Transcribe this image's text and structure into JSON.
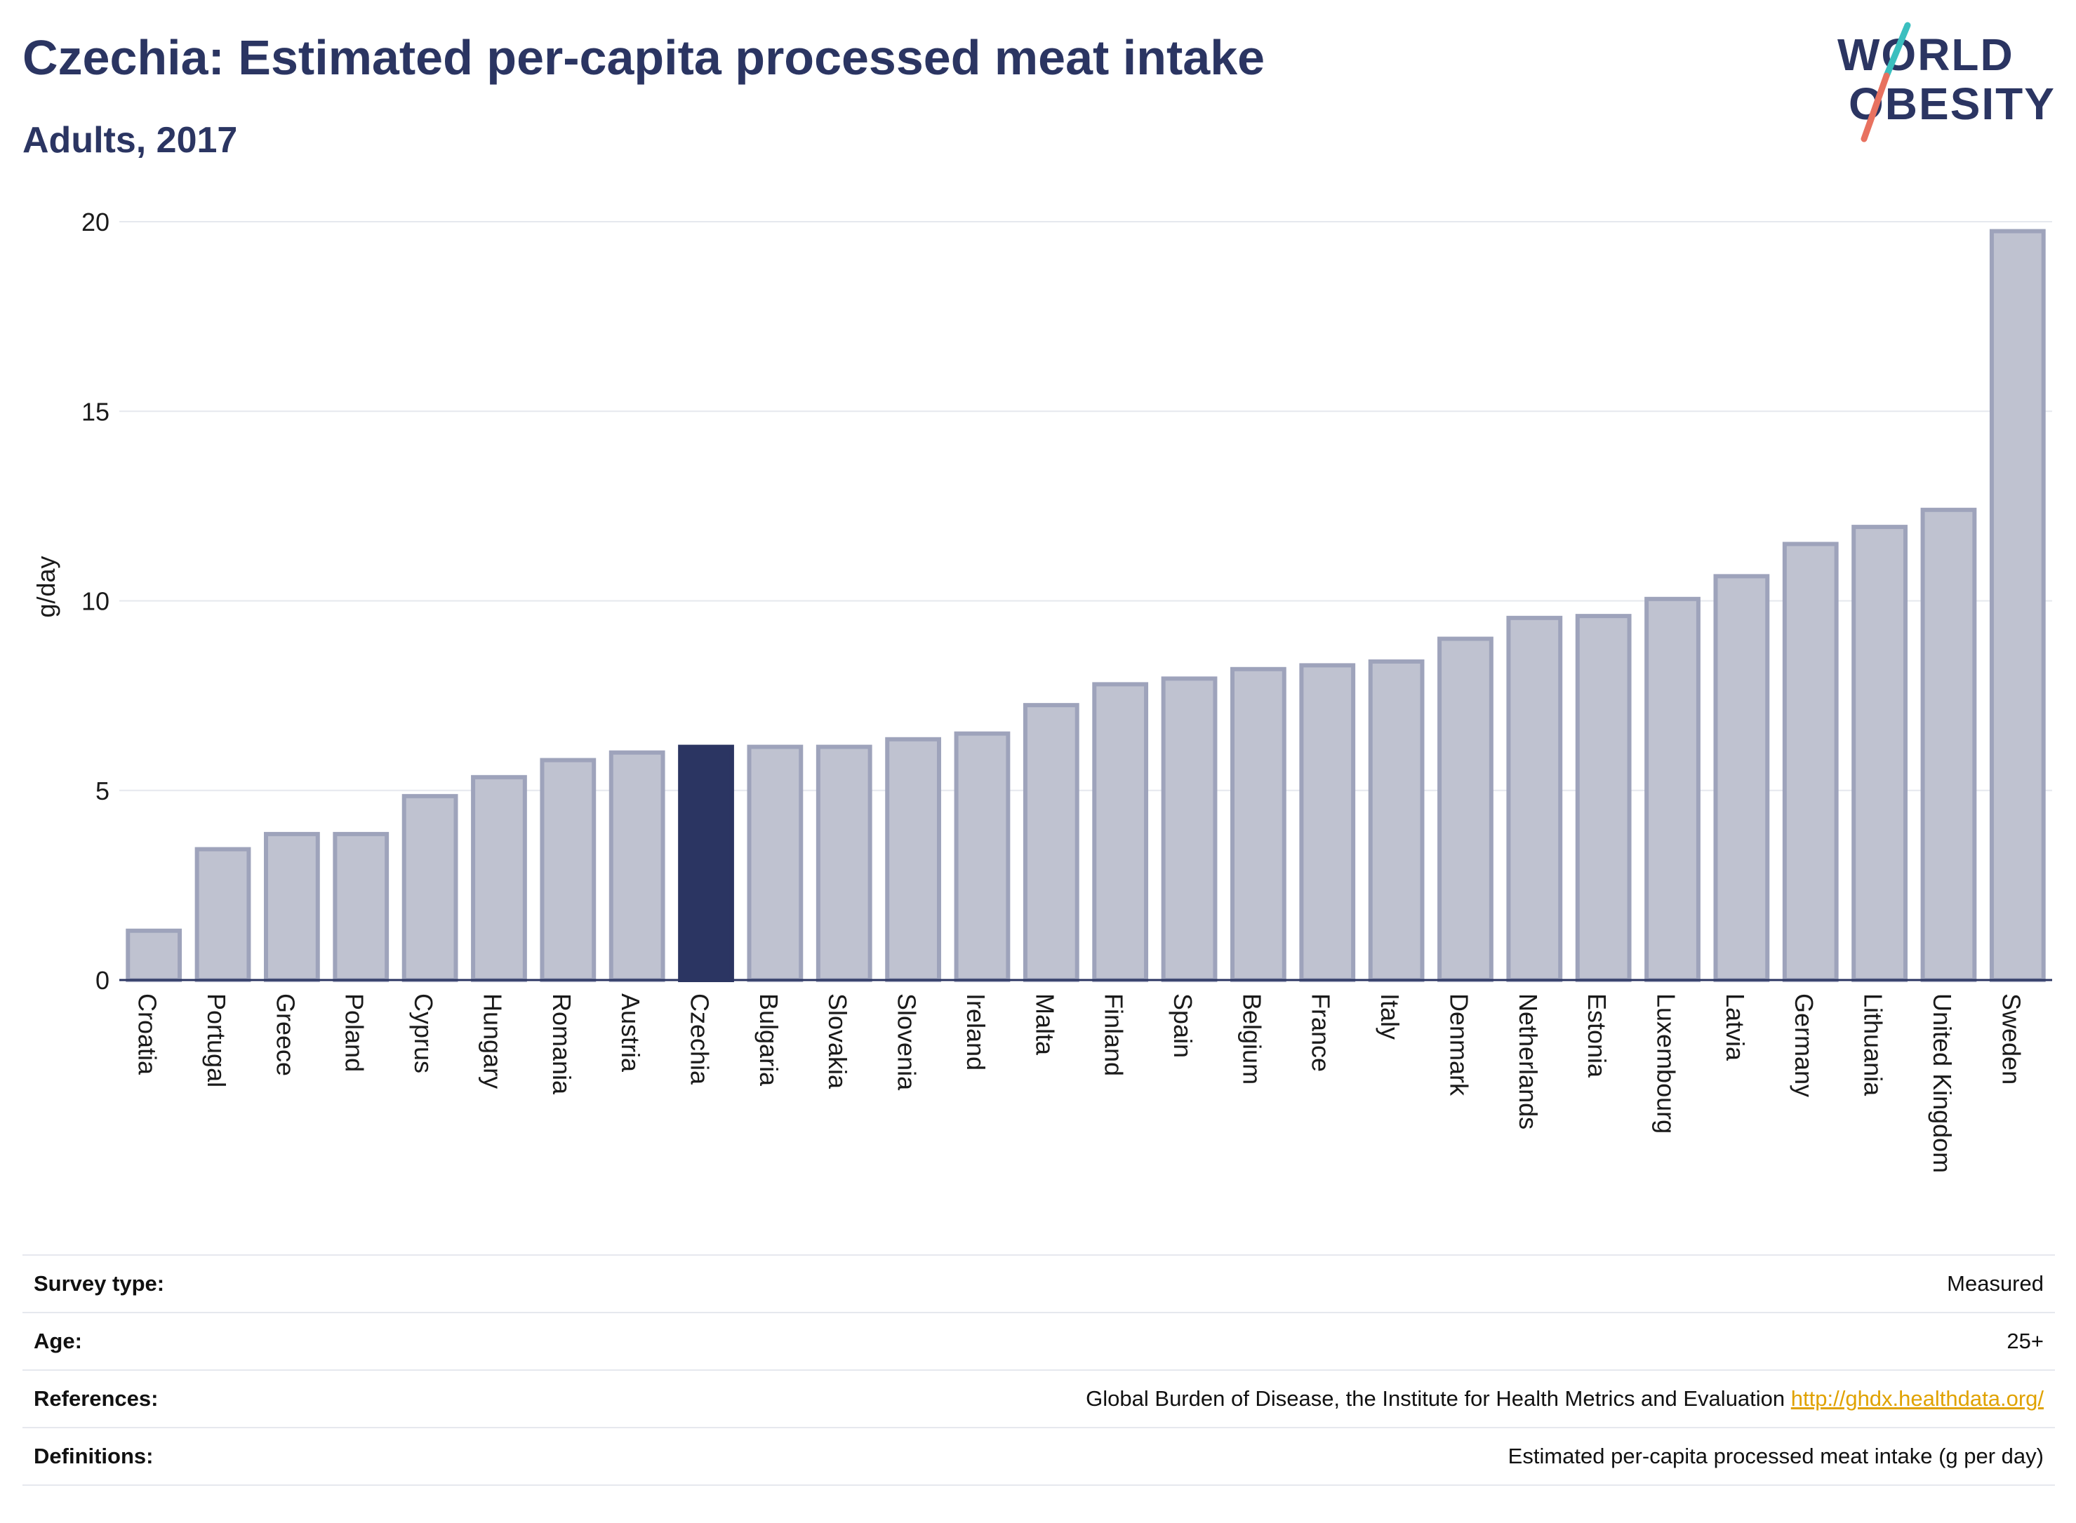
{
  "header": {
    "title": "Czechia: Estimated per-capita processed meat intake",
    "subtitle": "Adults, 2017"
  },
  "logo": {
    "line1": "WORLD",
    "line2": "OBESITY"
  },
  "chart_data": {
    "type": "bar",
    "ylabel": "g/day",
    "xlabel": "",
    "ylim": [
      0,
      20
    ],
    "yticks": [
      0,
      5,
      10,
      15,
      20
    ],
    "grid": true,
    "highlight": "Czechia",
    "colors": {
      "bar": "#bfc2d0",
      "bar_border": "#9ea3bb",
      "highlight": "#2b3562",
      "grid": "#e6e8ee",
      "axis": "#2b3562"
    },
    "categories": [
      "Croatia",
      "Portugal",
      "Greece",
      "Poland",
      "Cyprus",
      "Hungary",
      "Romania",
      "Austria",
      "Czechia",
      "Bulgaria",
      "Slovakia",
      "Slovenia",
      "Ireland",
      "Malta",
      "Finland",
      "Spain",
      "Belgium",
      "France",
      "Italy",
      "Denmark",
      "Netherlands",
      "Estonia",
      "Luxembourg",
      "Latvia",
      "Germany",
      "Lithuania",
      "United Kingdom",
      "Sweden"
    ],
    "values": [
      1.3,
      3.45,
      3.85,
      3.85,
      4.85,
      5.35,
      5.8,
      6.0,
      6.15,
      6.15,
      6.15,
      6.35,
      6.5,
      7.25,
      7.8,
      7.95,
      8.2,
      8.3,
      8.4,
      9.0,
      9.55,
      9.6,
      10.05,
      10.65,
      11.5,
      11.95,
      12.4,
      19.75
    ]
  },
  "info": {
    "rows": [
      {
        "key": "Survey type:",
        "value": "Measured"
      },
      {
        "key": "Age:",
        "value": "25+"
      },
      {
        "key": "References:",
        "value": "Global Burden of Disease, the Institute for Health Metrics and Evaluation",
        "link": "http://ghdx.healthdata.org/"
      },
      {
        "key": "Definitions:",
        "value": "Estimated per-capita processed meat intake (g per day)"
      }
    ]
  }
}
